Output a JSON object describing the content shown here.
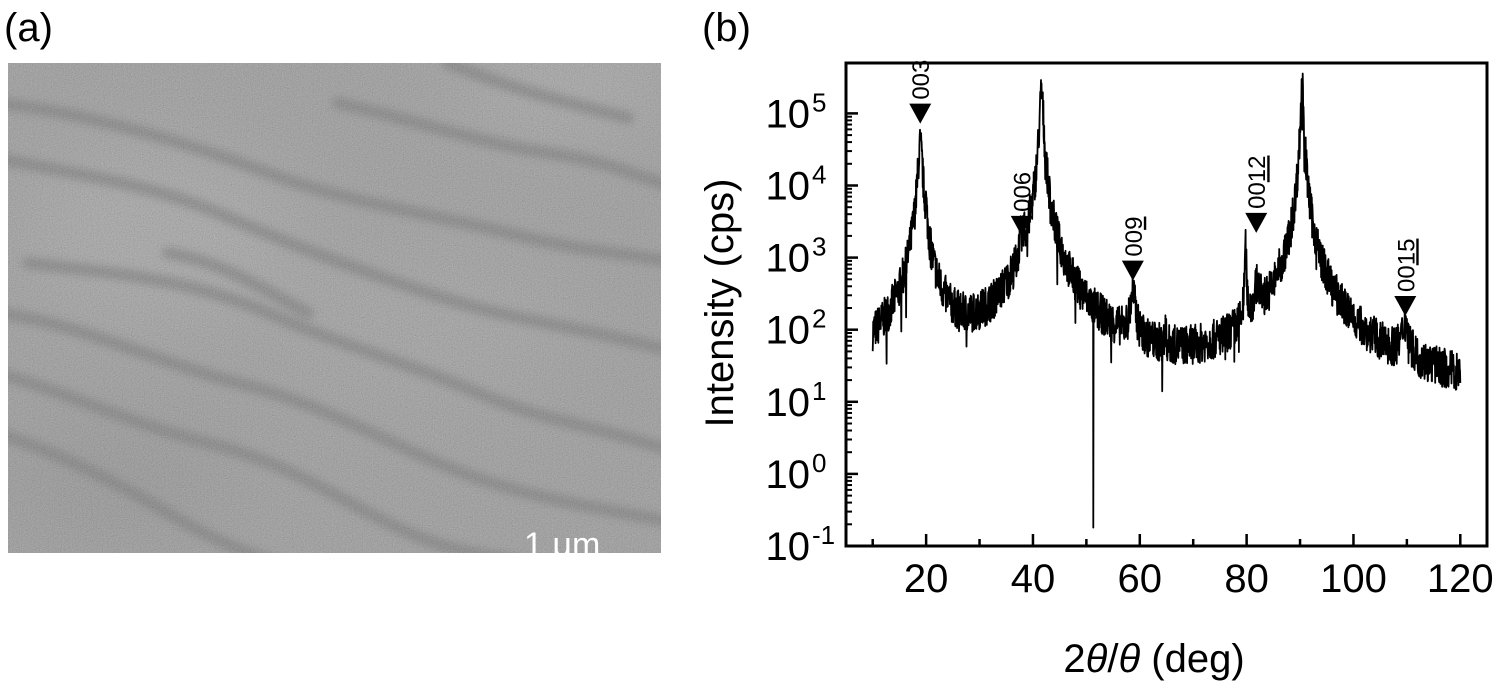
{
  "panels": {
    "a": {
      "label": "(a)",
      "scale_bar": "1 μm"
    },
    "b": {
      "label": "(b)"
    }
  },
  "chart_data": {
    "type": "line",
    "scale": "log-y",
    "xlabel_parts": [
      "2",
      "θ",
      "/",
      "θ",
      " (deg)"
    ],
    "ylabel": "Intensity (cps)",
    "xlim": [
      5,
      125
    ],
    "ylim": [
      0.1,
      500000
    ],
    "x_ticks": [
      20,
      40,
      60,
      80,
      100,
      120
    ],
    "y_ticks": [
      {
        "value": 0.1,
        "base": "10",
        "exp": "-1"
      },
      {
        "value": 1,
        "base": "10",
        "exp": "0"
      },
      {
        "value": 10,
        "base": "10",
        "exp": "1"
      },
      {
        "value": 100,
        "base": "10",
        "exp": "2"
      },
      {
        "value": 1000,
        "base": "10",
        "exp": "3"
      },
      {
        "value": 10000,
        "base": "10",
        "exp": "4"
      },
      {
        "value": 100000,
        "base": "10",
        "exp": "5"
      }
    ],
    "background": 8,
    "range": [
      10,
      120
    ],
    "peaks": [
      {
        "x": 17.5,
        "y": 200,
        "w": 0.5
      },
      {
        "x": 18.9,
        "y": 36000,
        "w": 0.38
      },
      {
        "x": 20.0,
        "y": 2300,
        "w": 0.13
      },
      {
        "x": 37.6,
        "y": 1000,
        "w": 0.16
      },
      {
        "x": 38.3,
        "y": 1000,
        "w": 0.18
      },
      {
        "x": 39.5,
        "y": 350,
        "w": 0.35
      },
      {
        "x": 41.6,
        "y": 200000,
        "w": 0.3
      },
      {
        "x": 58.7,
        "y": 250,
        "w": 0.45
      },
      {
        "x": 64.8,
        "y": 60,
        "w": 0.08
      },
      {
        "x": 79.8,
        "y": 1300,
        "w": 0.13
      },
      {
        "x": 82.0,
        "y": 250,
        "w": 0.55
      },
      {
        "x": 85.8,
        "y": 90,
        "w": 0.2
      },
      {
        "x": 90.4,
        "y": 250000,
        "w": 0.22
      },
      {
        "x": 109.7,
        "y": 80,
        "w": 0.6
      }
    ],
    "dips": [
      {
        "x": 51.3,
        "y": 0.18
      }
    ],
    "annotations": [
      {
        "label": "003",
        "underline": "",
        "x": 18.9,
        "y": 72000
      },
      {
        "label": "00",
        "underline": "6",
        "x": 37.9,
        "y": 2000
      },
      {
        "label": "00",
        "underline": "9",
        "x": 58.7,
        "y": 480
      },
      {
        "label": "00",
        "underline": "12",
        "x": 81.8,
        "y": 2200
      },
      {
        "label": "00",
        "underline": "15",
        "x": 109.7,
        "y": 155
      }
    ]
  }
}
